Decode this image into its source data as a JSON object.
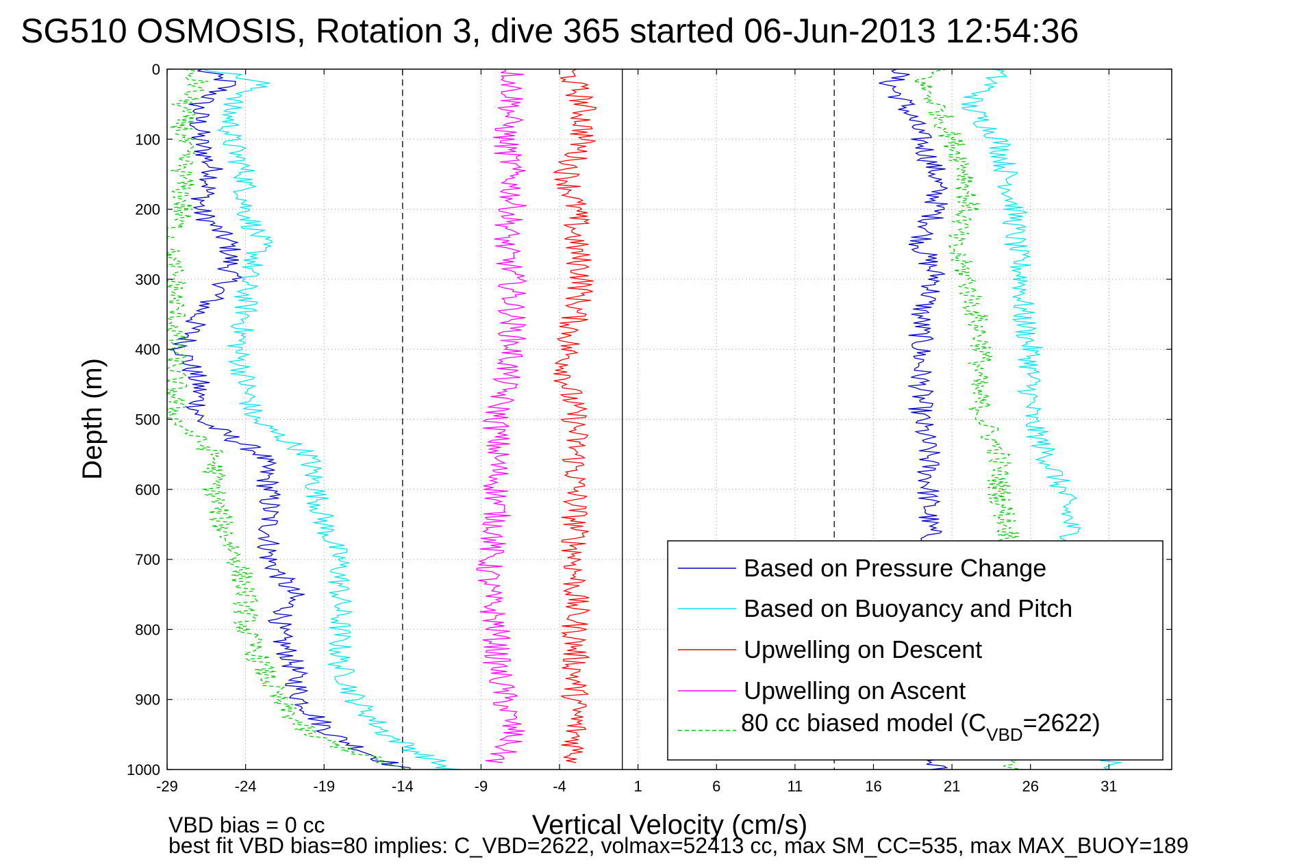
{
  "figure": {
    "title": "SG510 OSMOSIS, Rotation 3, dive 365 started 06-Jun-2013 12:54:36",
    "note_line1": "VBD bias = 0 cc",
    "note_line2": "best fit VBD bias=80 implies: C_VBD=2622, volmax=52413 cc, max SM_CC=535, max MAX_BUOY=189"
  },
  "chart_data": {
    "type": "line",
    "title": "SG510 OSMOSIS, Rotation 3, dive 365 started 06-Jun-2013 12:54:36",
    "xlabel": "Vertical Velocity (cm/s)",
    "ylabel": "Depth (m)",
    "xlim": [
      -29,
      35
    ],
    "ylim": [
      0,
      1000
    ],
    "y_reversed": true,
    "grid": true,
    "x_ticks": [
      "-29",
      "-24",
      "-19",
      "-14",
      "-9",
      "-4",
      "1",
      "6",
      "11",
      "16",
      "21",
      "26",
      "31"
    ],
    "y_ticks": [
      "0",
      "100",
      "200",
      "300",
      "400",
      "500",
      "600",
      "700",
      "800",
      "900",
      "1000"
    ],
    "reference_lines": [
      {
        "x": -14,
        "style": "dashed",
        "color": "#000000"
      },
      {
        "x": 0,
        "style": "solid",
        "color": "#000000"
      },
      {
        "x": 13.5,
        "style": "dashed",
        "color": "#000000"
      }
    ],
    "legend_position": "lower-right",
    "legend": [
      {
        "label": "Based on Pressure Change",
        "color": "#0000cc",
        "style": "solid"
      },
      {
        "label": "Based on Buoyancy and Pitch",
        "color": "#00e5ee",
        "style": "solid"
      },
      {
        "label": "Upwelling on Descent",
        "color": "#ff0000",
        "style": "solid"
      },
      {
        "label": "Upwelling on Ascent",
        "color": "#ff00ff",
        "style": "solid"
      },
      {
        "label_main": "80 cc biased model (C",
        "label_sub": "VBD",
        "label_end": "=2622)",
        "color": "#00cc00",
        "style": "dashed"
      }
    ],
    "series": [
      {
        "name": "Based on Pressure Change",
        "color": "#0000cc",
        "dash": false,
        "depth": [
          0,
          20,
          50,
          100,
          150,
          200,
          250,
          300,
          350,
          400,
          450,
          500,
          550,
          600,
          650,
          700,
          750,
          800,
          850,
          900,
          950,
          1000
        ],
        "left": [
          -27,
          -25,
          -27,
          -27,
          -26,
          -27,
          -25,
          -25,
          -27,
          -28,
          -27,
          -27,
          -23,
          -22.5,
          -22.5,
          -22.5,
          -21,
          -22,
          -21,
          -20.5,
          -18.5,
          -14
        ],
        "right": [
          18,
          17,
          18,
          19,
          20,
          20,
          19,
          20,
          19,
          19,
          19,
          19,
          19.5,
          19.5,
          19.5,
          20,
          20,
          20,
          20,
          20,
          20,
          20
        ]
      },
      {
        "name": "Based on Buoyancy and Pitch",
        "color": "#00e5ee",
        "dash": false,
        "depth": [
          0,
          20,
          50,
          100,
          150,
          200,
          250,
          300,
          350,
          400,
          450,
          500,
          550,
          600,
          650,
          700,
          750,
          800,
          850,
          900,
          950,
          1000
        ],
        "left": [
          -26,
          -23,
          -25,
          -25,
          -24,
          -24,
          -23,
          -24,
          -24,
          -24.5,
          -24,
          -23.5,
          -20,
          -19.5,
          -19,
          -18,
          -18,
          -18,
          -18,
          -17,
          -15,
          -11
        ],
        "right": [
          24,
          23.5,
          22,
          24,
          24.5,
          25,
          25,
          25.5,
          25.5,
          26,
          26,
          26,
          27,
          28,
          28.5,
          29,
          30,
          31,
          31,
          31,
          31,
          31
        ]
      },
      {
        "name": "Upwelling on Descent",
        "color": "#ff0000",
        "dash": false,
        "depth": [
          0,
          50,
          100,
          150,
          200,
          250,
          300,
          350,
          400,
          450,
          500,
          550,
          600,
          650,
          700,
          750,
          800,
          850,
          900,
          950,
          990
        ],
        "x": [
          -3.5,
          -2.5,
          -2.5,
          -3.5,
          -3,
          -3,
          -2.5,
          -3,
          -3.5,
          -3.5,
          -3,
          -3,
          -3,
          -3,
          -3,
          -3,
          -3,
          -3,
          -3,
          -3,
          -3
        ]
      },
      {
        "name": "Upwelling on Ascent",
        "color": "#ff00ff",
        "dash": false,
        "depth": [
          0,
          50,
          100,
          150,
          200,
          250,
          300,
          350,
          400,
          450,
          500,
          550,
          600,
          650,
          700,
          750,
          800,
          850,
          900,
          950,
          990
        ],
        "x": [
          -7,
          -7,
          -7.5,
          -7,
          -7,
          -7.5,
          -7,
          -7,
          -7,
          -7.5,
          -8,
          -8,
          -8,
          -8,
          -8.5,
          -8.5,
          -8,
          -8,
          -7.5,
          -7,
          -8
        ]
      },
      {
        "name": "80 cc biased model (C_VBD=2622)",
        "color": "#00cc00",
        "dash": true,
        "depth": [
          0,
          20,
          50,
          100,
          150,
          200,
          250,
          300,
          350,
          400,
          450,
          500,
          550,
          600,
          650,
          700,
          750,
          800,
          850,
          900,
          950,
          1000
        ],
        "left": [
          -28,
          -27,
          -28,
          -28,
          -28,
          -28,
          -29,
          -28.5,
          -28.5,
          -28.5,
          -28.5,
          -28.5,
          -26,
          -26,
          -25.5,
          -24.5,
          -24,
          -24,
          -23,
          -22,
          -20,
          -14
        ],
        "right": [
          20,
          19,
          20,
          21,
          22,
          22,
          21,
          22,
          22.5,
          23,
          22.5,
          23,
          24,
          24,
          24.5,
          25,
          25,
          25,
          25,
          25,
          25,
          25
        ]
      }
    ]
  }
}
